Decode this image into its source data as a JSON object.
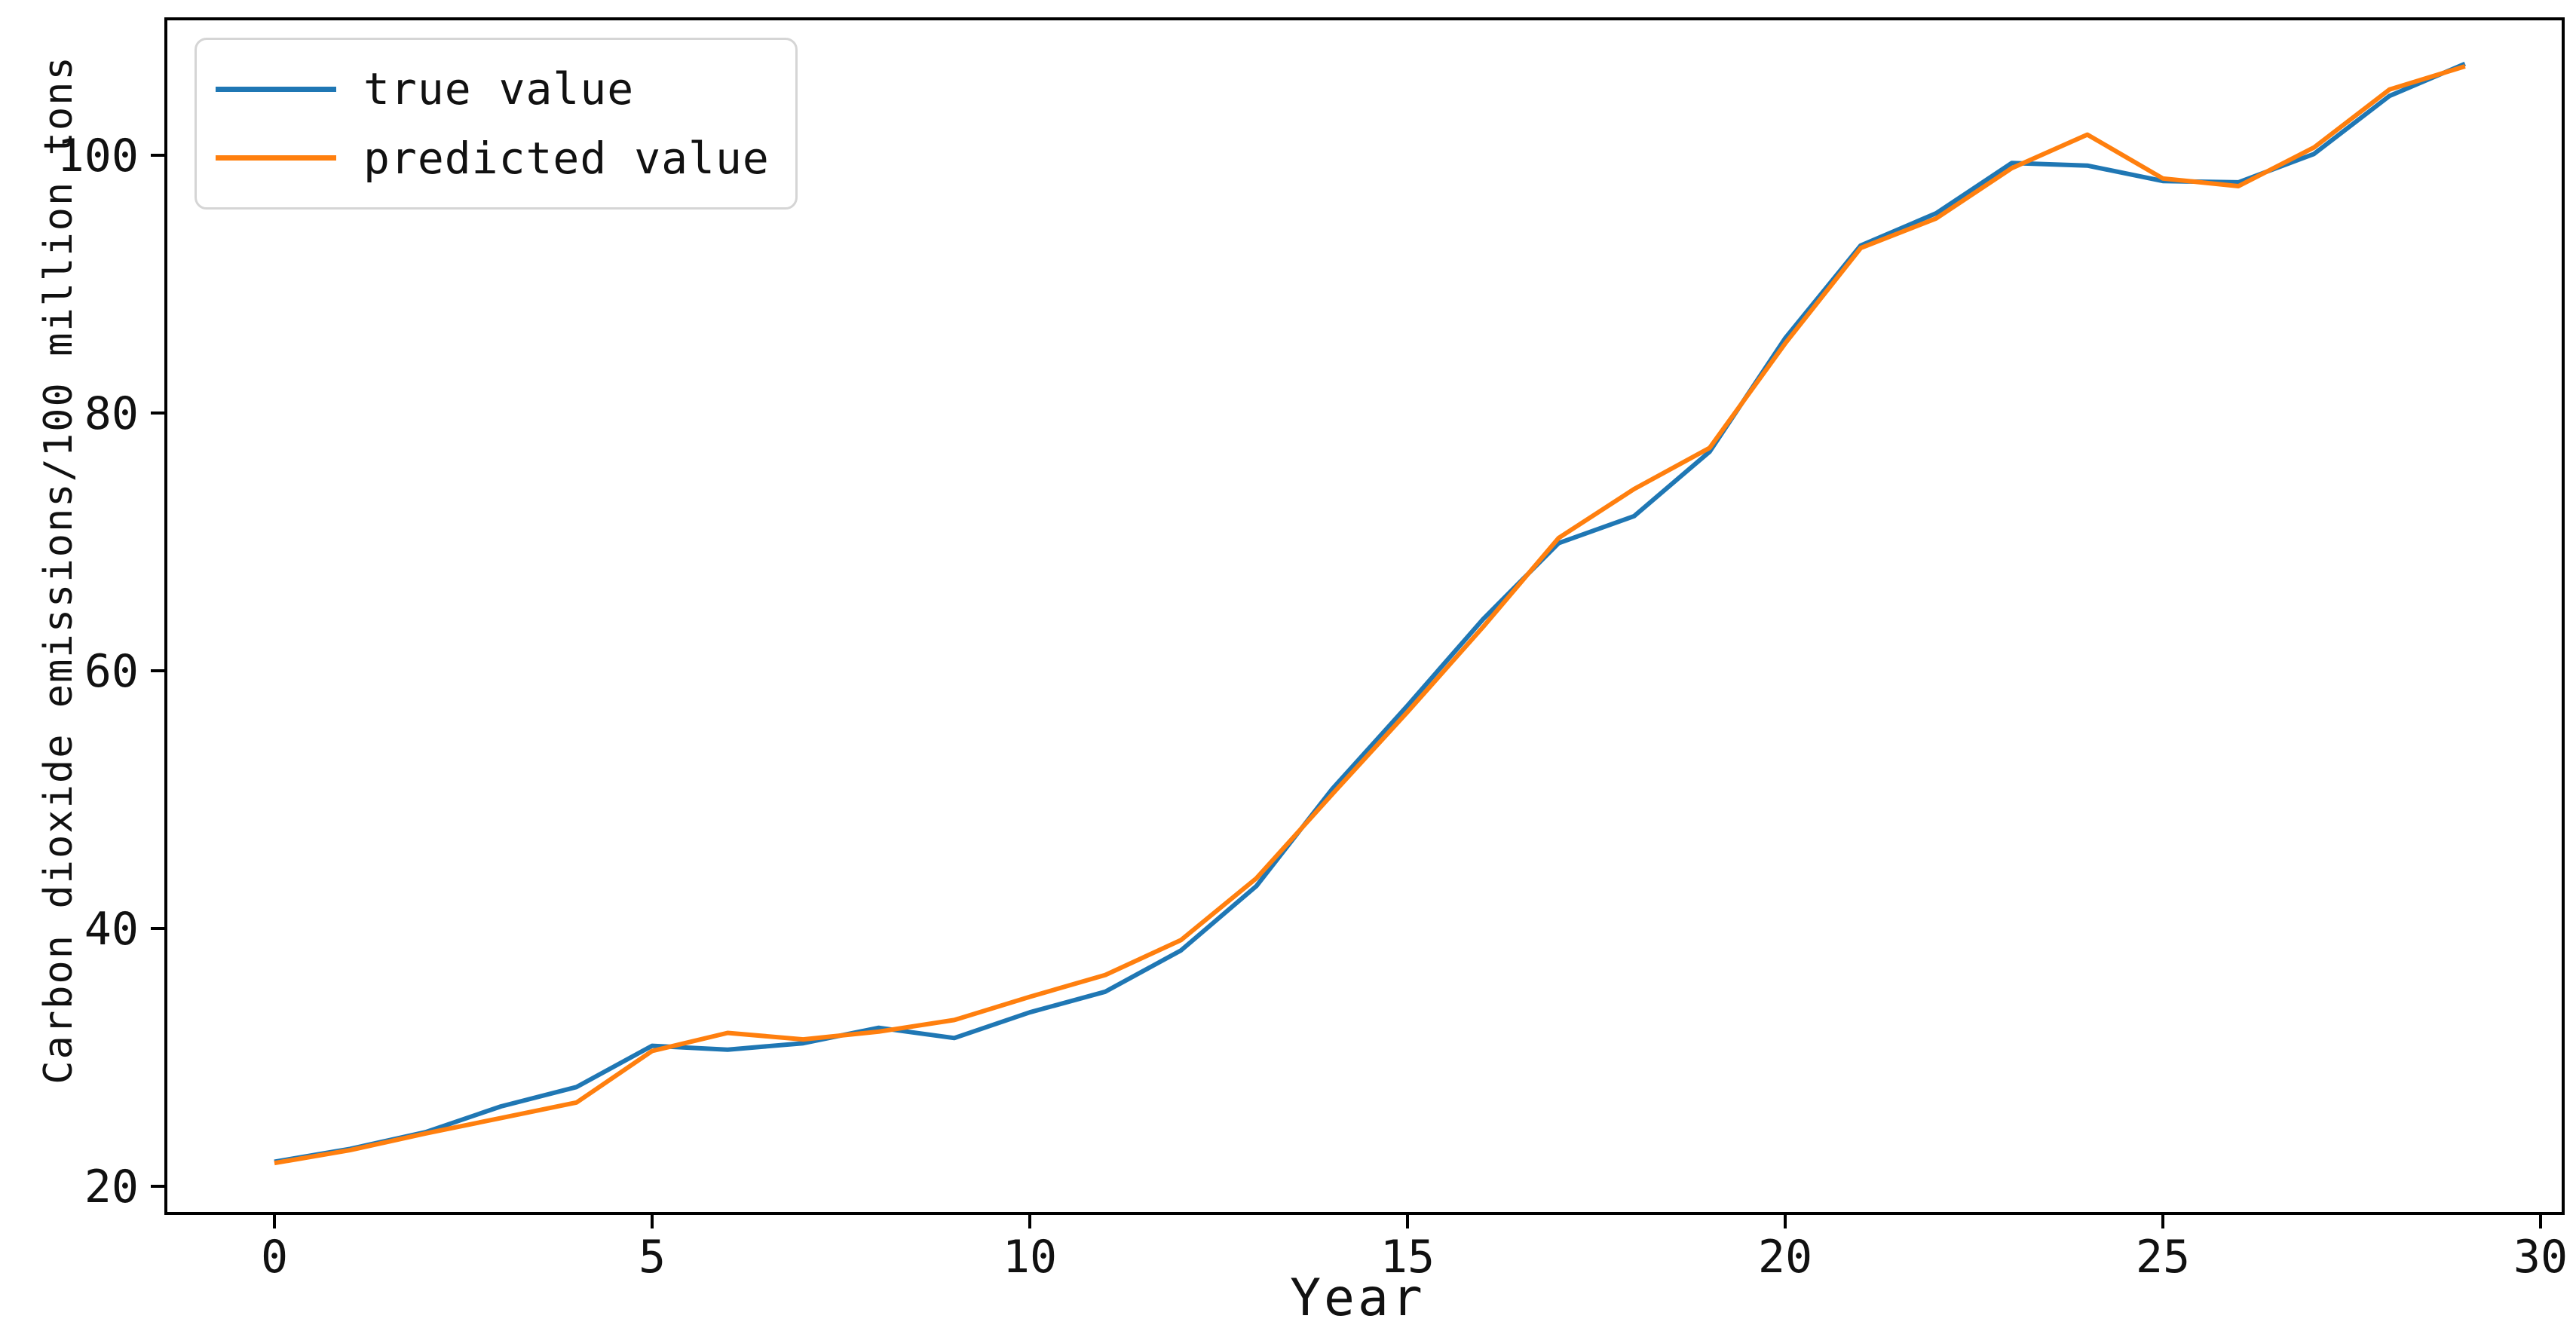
{
  "chart_data": {
    "type": "line",
    "title": "",
    "xlabel": "Year",
    "ylabel": "Carbon dioxide emissions/100 million tons",
    "x": [
      0,
      1,
      2,
      3,
      4,
      5,
      6,
      7,
      8,
      9,
      10,
      11,
      12,
      13,
      14,
      15,
      16,
      17,
      18,
      19,
      20,
      21,
      22,
      23,
      24,
      25,
      26,
      27,
      28,
      29
    ],
    "series": [
      {
        "name": "true value",
        "color": "#1f77b4",
        "values": [
          21.9,
          22.9,
          24.2,
          26.2,
          27.7,
          30.9,
          30.6,
          31.1,
          32.3,
          31.5,
          33.5,
          35.1,
          38.3,
          43.3,
          50.8,
          57.3,
          64.0,
          69.9,
          72.0,
          77.0,
          85.8,
          93.0,
          95.5,
          99.4,
          99.2,
          98.0,
          97.9,
          100.1,
          104.6,
          107.1
        ]
      },
      {
        "name": "predicted value",
        "color": "#ff7f0e",
        "values": [
          21.8,
          22.8,
          24.1,
          25.3,
          26.5,
          30.5,
          31.9,
          31.4,
          32.0,
          32.9,
          34.7,
          36.4,
          39.1,
          43.9,
          50.4,
          56.8,
          63.4,
          70.3,
          74.1,
          77.3,
          85.4,
          92.8,
          95.1,
          99.0,
          101.6,
          98.2,
          97.6,
          100.6,
          105.1,
          106.9
        ]
      }
    ],
    "x_ticks": [
      0,
      5,
      10,
      15,
      20,
      25,
      30
    ],
    "y_ticks": [
      20,
      40,
      60,
      80,
      100
    ],
    "xlim": [
      -1.45,
      30.45
    ],
    "ylim": [
      17.9,
      110.6
    ],
    "legend_position": "upper left",
    "grid": false,
    "background_color": "#ffffff",
    "spine_color": "#000000",
    "tick_label_color": "#111111"
  }
}
